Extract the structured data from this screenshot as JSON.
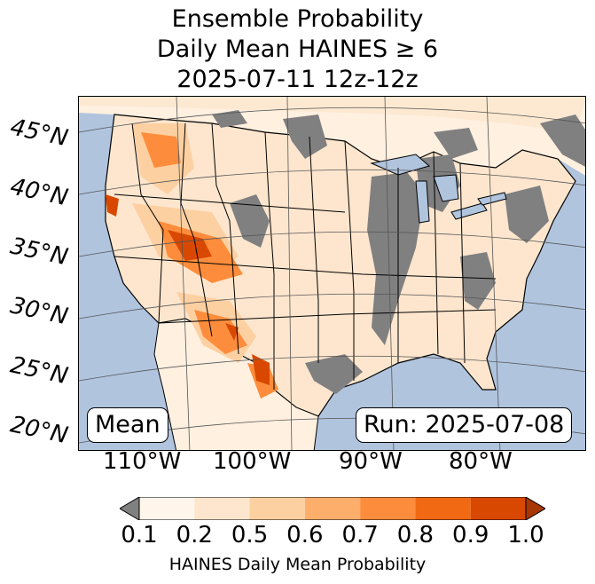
{
  "title": {
    "line1": "Ensemble Probability",
    "line2": "Daily Mean HAINES ≥ 6",
    "line3": "2025-07-11 12z-12z"
  },
  "map": {
    "region": "CONUS",
    "ocean_color": "#b0c4de",
    "masked_color": "#808080",
    "lat_labels": [
      "45°N",
      "40°N",
      "35°N",
      "30°N",
      "25°N",
      "20°N"
    ],
    "lon_labels": [
      "110°W",
      "100°W",
      "90°W",
      "80°W"
    ]
  },
  "annotations": {
    "left": "Mean",
    "right": "Run: 2025-07-08"
  },
  "colorbar": {
    "ticks": [
      "0.1",
      "0.2",
      "0.5",
      "0.6",
      "0.7",
      "0.8",
      "0.9",
      "1.0"
    ],
    "colors": [
      "#fff5eb",
      "#fee6ce",
      "#fdd0a2",
      "#fdae6b",
      "#fd8d3c",
      "#f16913",
      "#d94801",
      "#a63603"
    ],
    "under_color": "#808080",
    "label": "HAINES Daily Mean Probability"
  }
}
